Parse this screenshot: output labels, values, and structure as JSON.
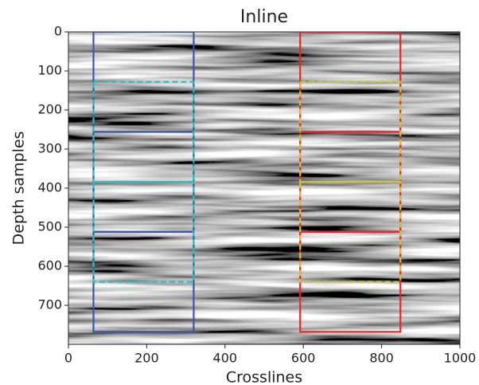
{
  "chart_data": {
    "type": "image",
    "title": "Inline",
    "x_label": "Crosslines",
    "y_label": "Depth samples",
    "xlim": [
      0,
      1000
    ],
    "ylim": [
      800,
      0
    ],
    "xticks": [
      0,
      200,
      400,
      600,
      800,
      1000
    ],
    "yticks": [
      0,
      100,
      200,
      300,
      400,
      500,
      600,
      700
    ],
    "rectangles": [
      {
        "x": [
          64,
          320
        ],
        "y": [
          0,
          256
        ],
        "color": "#3b55a8",
        "style": "solid"
      },
      {
        "x": [
          64,
          320
        ],
        "y": [
          256,
          512
        ],
        "color": "#3b55a8",
        "style": "solid"
      },
      {
        "x": [
          64,
          320
        ],
        "y": [
          512,
          768
        ],
        "color": "#3b55a8",
        "style": "solid"
      },
      {
        "x": [
          64,
          320
        ],
        "y": [
          128,
          384
        ],
        "color": "#2ebfc0",
        "style": "dashed"
      },
      {
        "x": [
          64,
          320
        ],
        "y": [
          384,
          640
        ],
        "color": "#2ebfc0",
        "style": "dashed"
      },
      {
        "x": [
          592,
          848
        ],
        "y": [
          0,
          256
        ],
        "color": "#e8262a",
        "style": "solid"
      },
      {
        "x": [
          592,
          848
        ],
        "y": [
          256,
          512
        ],
        "color": "#e8262a",
        "style": "solid"
      },
      {
        "x": [
          592,
          848
        ],
        "y": [
          512,
          768
        ],
        "color": "#e8262a",
        "style": "solid"
      },
      {
        "x": [
          592,
          848
        ],
        "y": [
          128,
          384
        ],
        "color": "#c9c83c",
        "style": "dashed"
      },
      {
        "x": [
          592,
          848
        ],
        "y": [
          384,
          640
        ],
        "color": "#c9c83c",
        "style": "dashed"
      }
    ]
  }
}
